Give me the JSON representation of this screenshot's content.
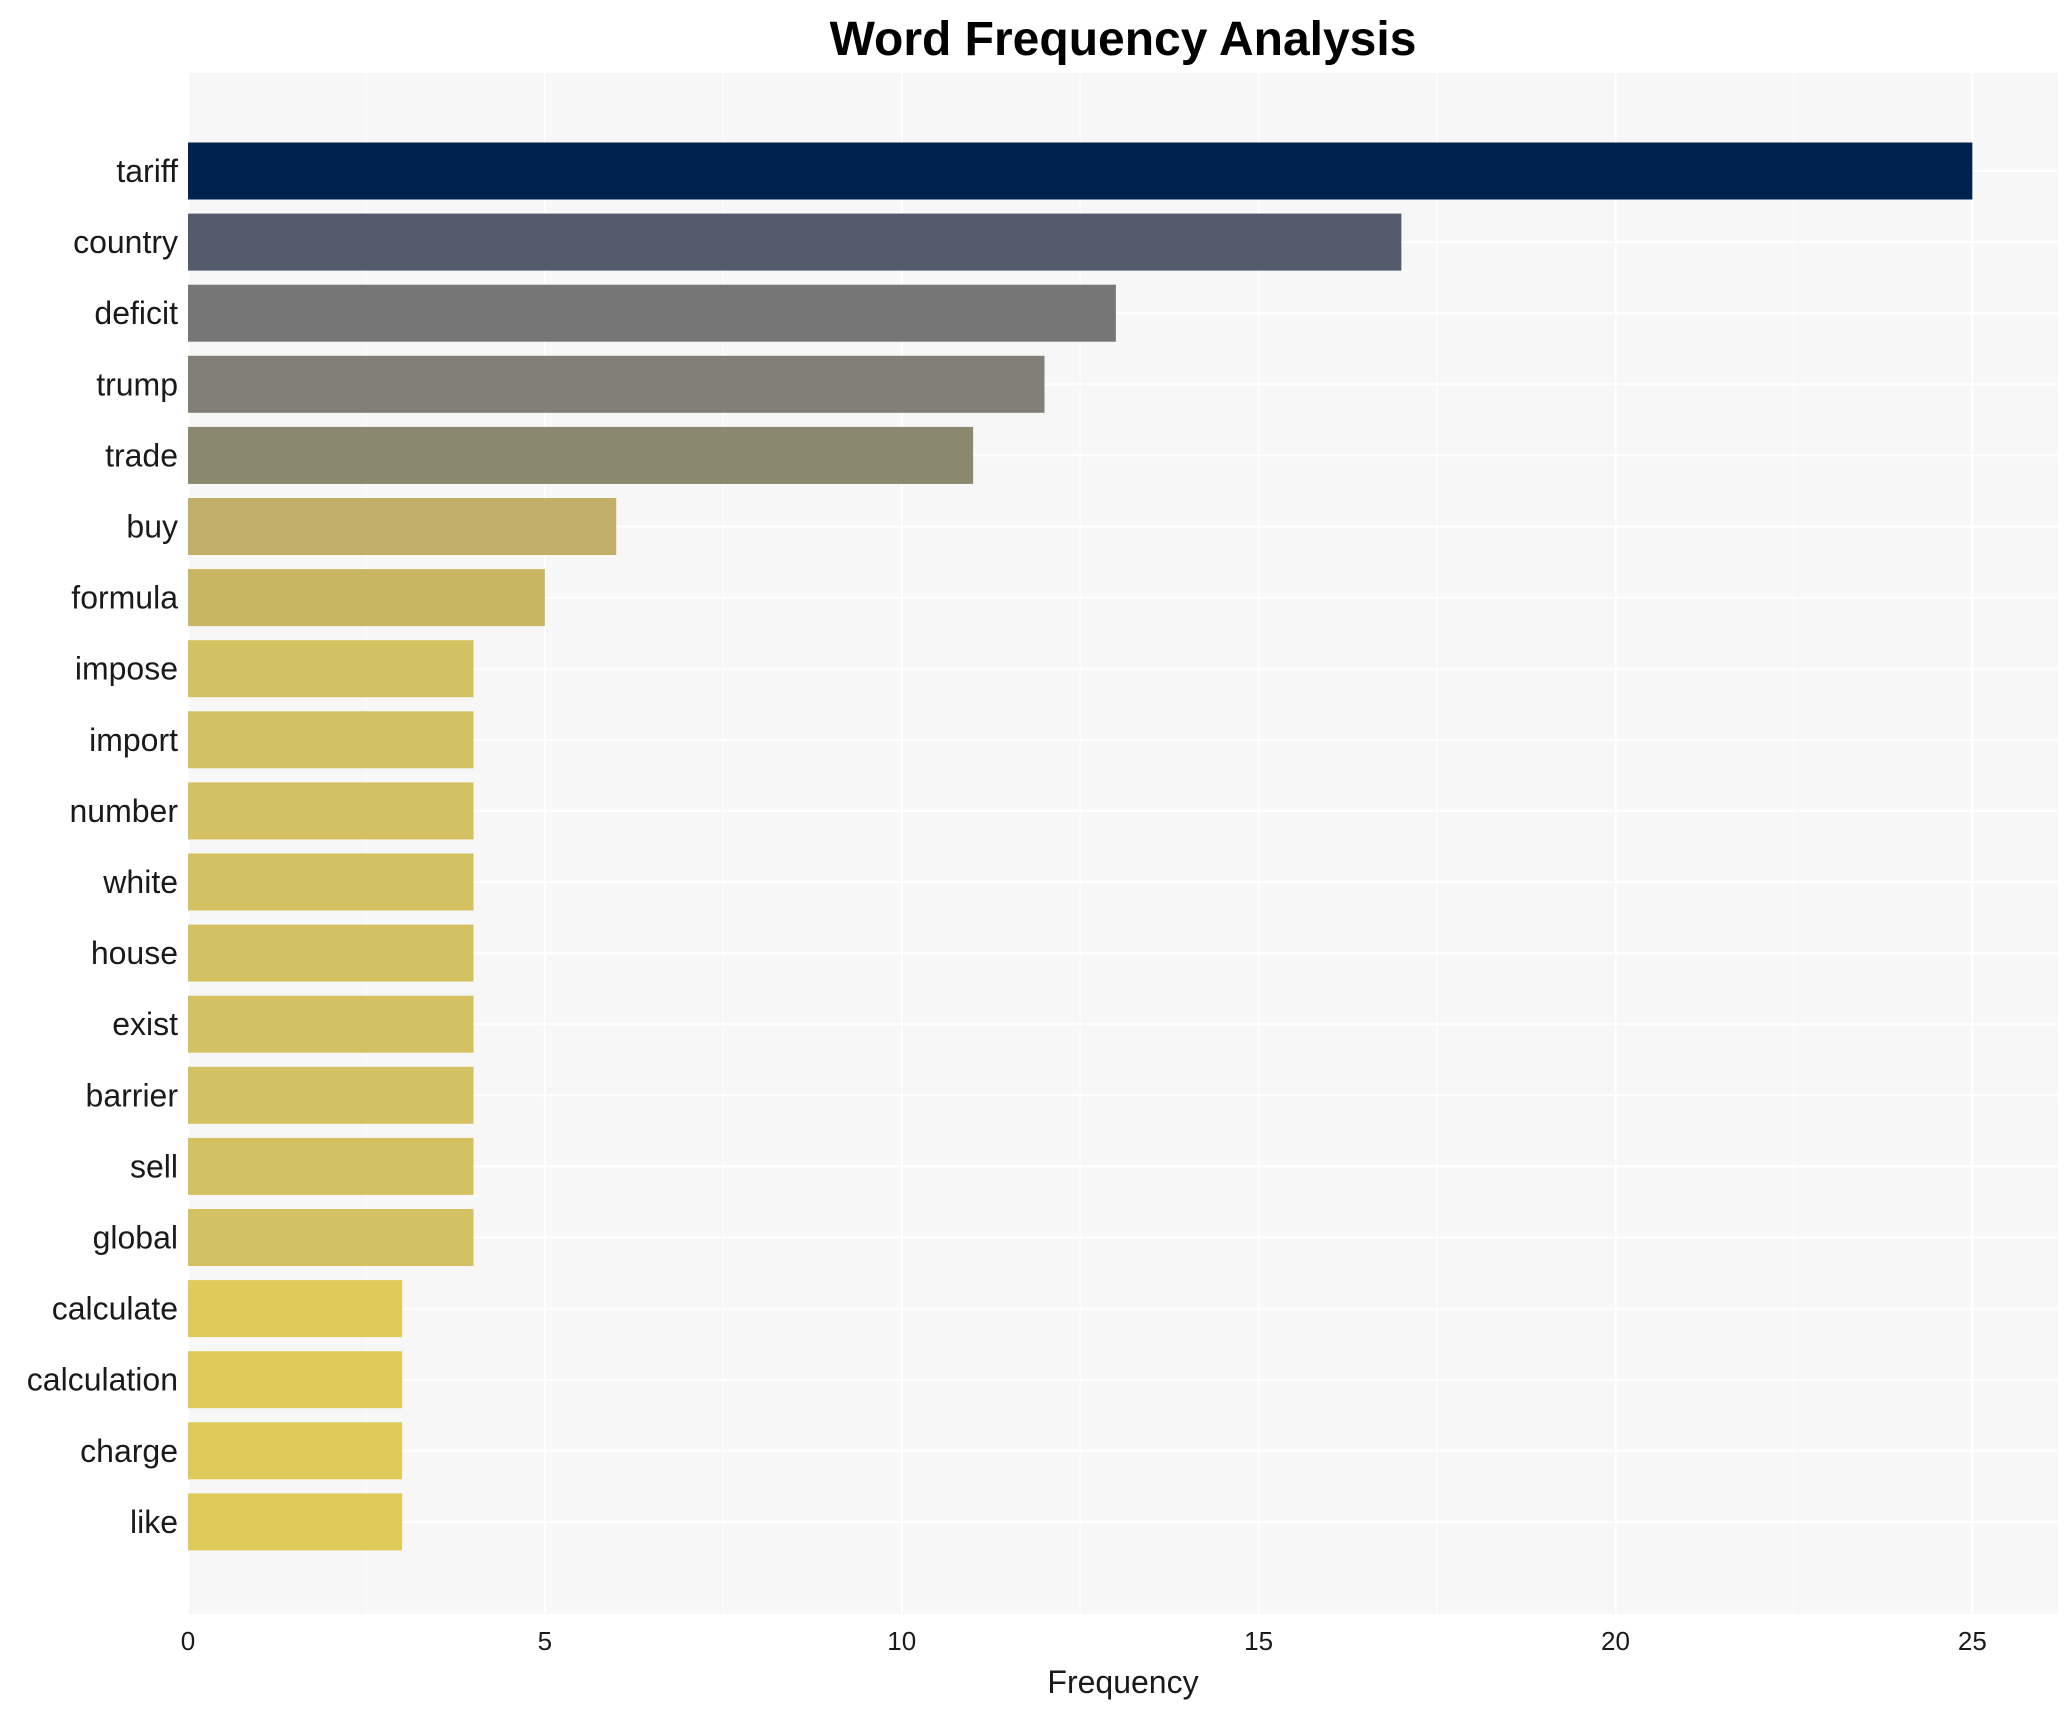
{
  "chart_data": {
    "type": "bar",
    "orientation": "horizontal",
    "title": "Word Frequency Analysis",
    "xlabel": "Frequency",
    "ylabel": "",
    "xlim": [
      0,
      26.2
    ],
    "xticks": [
      0,
      5,
      10,
      15,
      20,
      25
    ],
    "grid": true,
    "legend": "none",
    "categories": [
      "tariff",
      "country",
      "deficit",
      "trump",
      "trade",
      "buy",
      "formula",
      "impose",
      "import",
      "number",
      "white",
      "house",
      "exist",
      "barrier",
      "sell",
      "global",
      "calculate",
      "calculation",
      "charge",
      "like"
    ],
    "values": [
      25,
      17,
      13,
      12,
      11,
      6,
      5,
      4,
      4,
      4,
      4,
      4,
      4,
      4,
      4,
      4,
      3,
      3,
      3,
      3
    ],
    "colors": [
      "#00224e",
      "#535a6c",
      "#767676",
      "#827f77",
      "#8c886f",
      "#c2af6a",
      "#c9b662",
      "#d3c162",
      "#d3c162",
      "#d3c162",
      "#d3c162",
      "#d3c162",
      "#d3c162",
      "#d3c162",
      "#d3c162",
      "#d3c162",
      "#dfcb5a",
      "#dfcb5a",
      "#dfcb5a",
      "#dfcb5a"
    ],
    "plot_background": "#f7f7f7",
    "grid_color": "#ffffff"
  }
}
